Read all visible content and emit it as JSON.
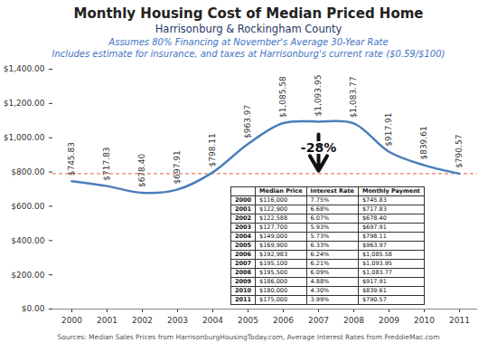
{
  "chart_data": {
    "type": "line",
    "title": "Monthly Housing Cost of Median Priced Home",
    "subtitle": [
      "Harrisonburg & Rockingham County",
      "Assumes 80% Financing at November's Average 30-Year Rate",
      "Includes estimate for insurance, and taxes at Harrisonburg's current rate ($0.59/$100)"
    ],
    "categories": [
      "2000",
      "2001",
      "2002",
      "2003",
      "2004",
      "2005",
      "2006",
      "2007",
      "2008",
      "2009",
      "2010",
      "2011"
    ],
    "values": [
      745.83,
      717.83,
      678.4,
      697.91,
      798.11,
      963.97,
      1085.58,
      1093.95,
      1083.77,
      917.91,
      839.61,
      790.57
    ],
    "value_labels": [
      "$745.83",
      "$717.83",
      "$678.40",
      "$697.91",
      "$798.11",
      "$963.97",
      "$1,085.58",
      "$1,093.95",
      "$1,083.77",
      "$917.91",
      "$839.61",
      "$790.57"
    ],
    "color": "#4a7ebb",
    "data_labels": true,
    "grid": false,
    "ylim": [
      0,
      1400
    ],
    "yticks": [
      {
        "value": 0,
        "label": "$0.00"
      },
      {
        "value": 200,
        "label": "$200.00"
      },
      {
        "value": 400,
        "label": "$400.00"
      },
      {
        "value": 600,
        "label": "$600.00"
      },
      {
        "value": 800,
        "label": "$800.00"
      },
      {
        "value": 1000,
        "label": "$1,000.00"
      },
      {
        "value": 1200,
        "label": "$1,200.00"
      },
      {
        "value": 1400,
        "label": "$1,400.00"
      }
    ],
    "reference_line": {
      "value": 790.57,
      "color": "#e8806b",
      "line_style": "dashed"
    },
    "annotation": "-28%",
    "table": {
      "header": [
        "Median Price",
        "Interest Rate",
        "Monthly Payment"
      ],
      "rows": [
        [
          "2000",
          "$116,000",
          "7.75%",
          "$745.83"
        ],
        [
          "2001",
          "$122,900",
          "6.68%",
          "$717.83"
        ],
        [
          "2002",
          "$122,588",
          "6.07%",
          "$678.40"
        ],
        [
          "2003",
          "$127,700",
          "5.93%",
          "$697.91"
        ],
        [
          "2004",
          "$149,000",
          "5.73%",
          "$798.11"
        ],
        [
          "2005",
          "$169,900",
          "6.33%",
          "$963.97"
        ],
        [
          "2006",
          "$192,983",
          "6.24%",
          "$1,085.58"
        ],
        [
          "2007",
          "$195,100",
          "6.21%",
          "$1,093.95"
        ],
        [
          "2008",
          "$195,500",
          "6.09%",
          "$1,083.77"
        ],
        [
          "2009",
          "$186,000",
          "4.88%",
          "$917.91"
        ],
        [
          "2010",
          "$180,000",
          "4.30%",
          "$839.61"
        ],
        [
          "2011",
          "$175,000",
          "3.99%",
          "$790.57"
        ]
      ]
    },
    "source": "Sources: Median Sales Prices from HarrisonburgHousingToday.com, Average Interest Rates from FreddieMac.com"
  }
}
